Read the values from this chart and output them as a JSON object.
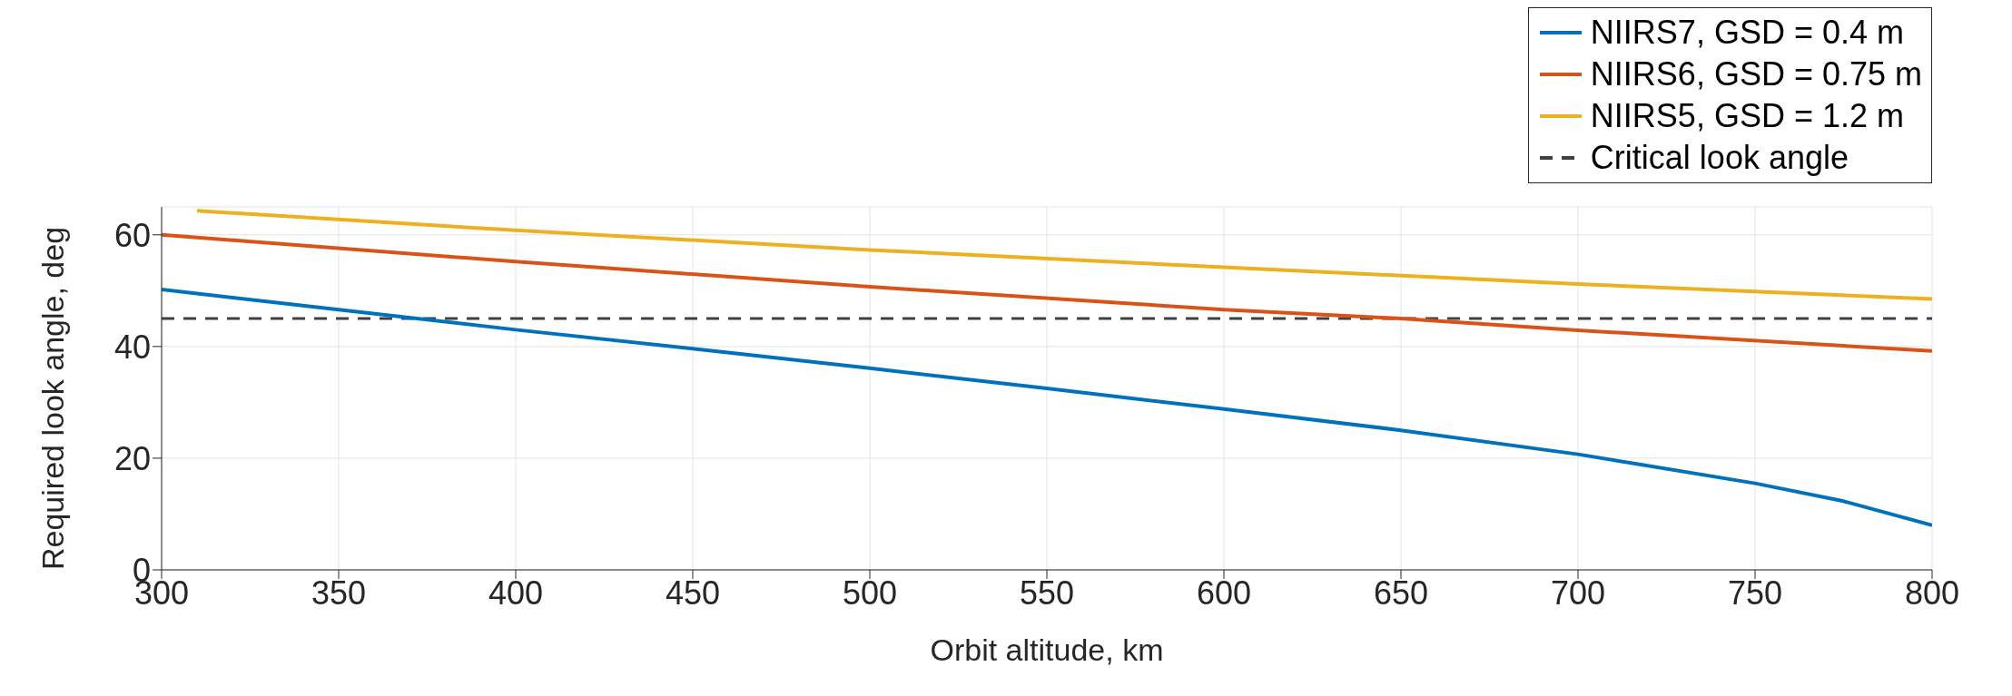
{
  "chart_data": {
    "type": "line",
    "xlabel": "Orbit altitude, km",
    "ylabel": "Required look angle, deg",
    "series": [
      {
        "name": "NIIRS7, GSD = 0.4 m",
        "color": "#0072bd",
        "x": [
          300,
          350,
          400,
          450,
          500,
          550,
          600,
          650,
          700,
          750,
          775,
          800
        ],
        "values": [
          50.2,
          46.6,
          43,
          39.6,
          36.1,
          32.5,
          28.8,
          25,
          20.7,
          15.5,
          12.3,
          8
        ]
      },
      {
        "name": "NIIRS6, GSD = 0.75 m",
        "color": "#d95319",
        "x": [
          300,
          400,
          500,
          600,
          650,
          700,
          800
        ],
        "values": [
          60,
          55.2,
          50.7,
          46.6,
          45,
          42.9,
          39.2
        ]
      },
      {
        "name": "NIIRS5, GSD = 1.2 m",
        "color": "#edb120",
        "x": [
          310,
          400,
          500,
          600,
          700,
          800
        ],
        "values": [
          64.3,
          60.8,
          57.3,
          54.2,
          51.2,
          48.5
        ]
      }
    ],
    "ref_lines": [
      {
        "axis": "y",
        "value": 45,
        "label": "Critical look angle",
        "color": "#404040",
        "line_style": "dashed"
      }
    ],
    "xlim": [
      300,
      800
    ],
    "xticks": [
      300,
      350,
      400,
      450,
      500,
      550,
      600,
      650,
      700,
      750,
      800
    ],
    "ylim": [
      0,
      65
    ],
    "yticks": [
      0,
      20,
      40,
      60
    ],
    "grid": true,
    "legend": "top right",
    "line_style": "solid",
    "marker": "none"
  }
}
